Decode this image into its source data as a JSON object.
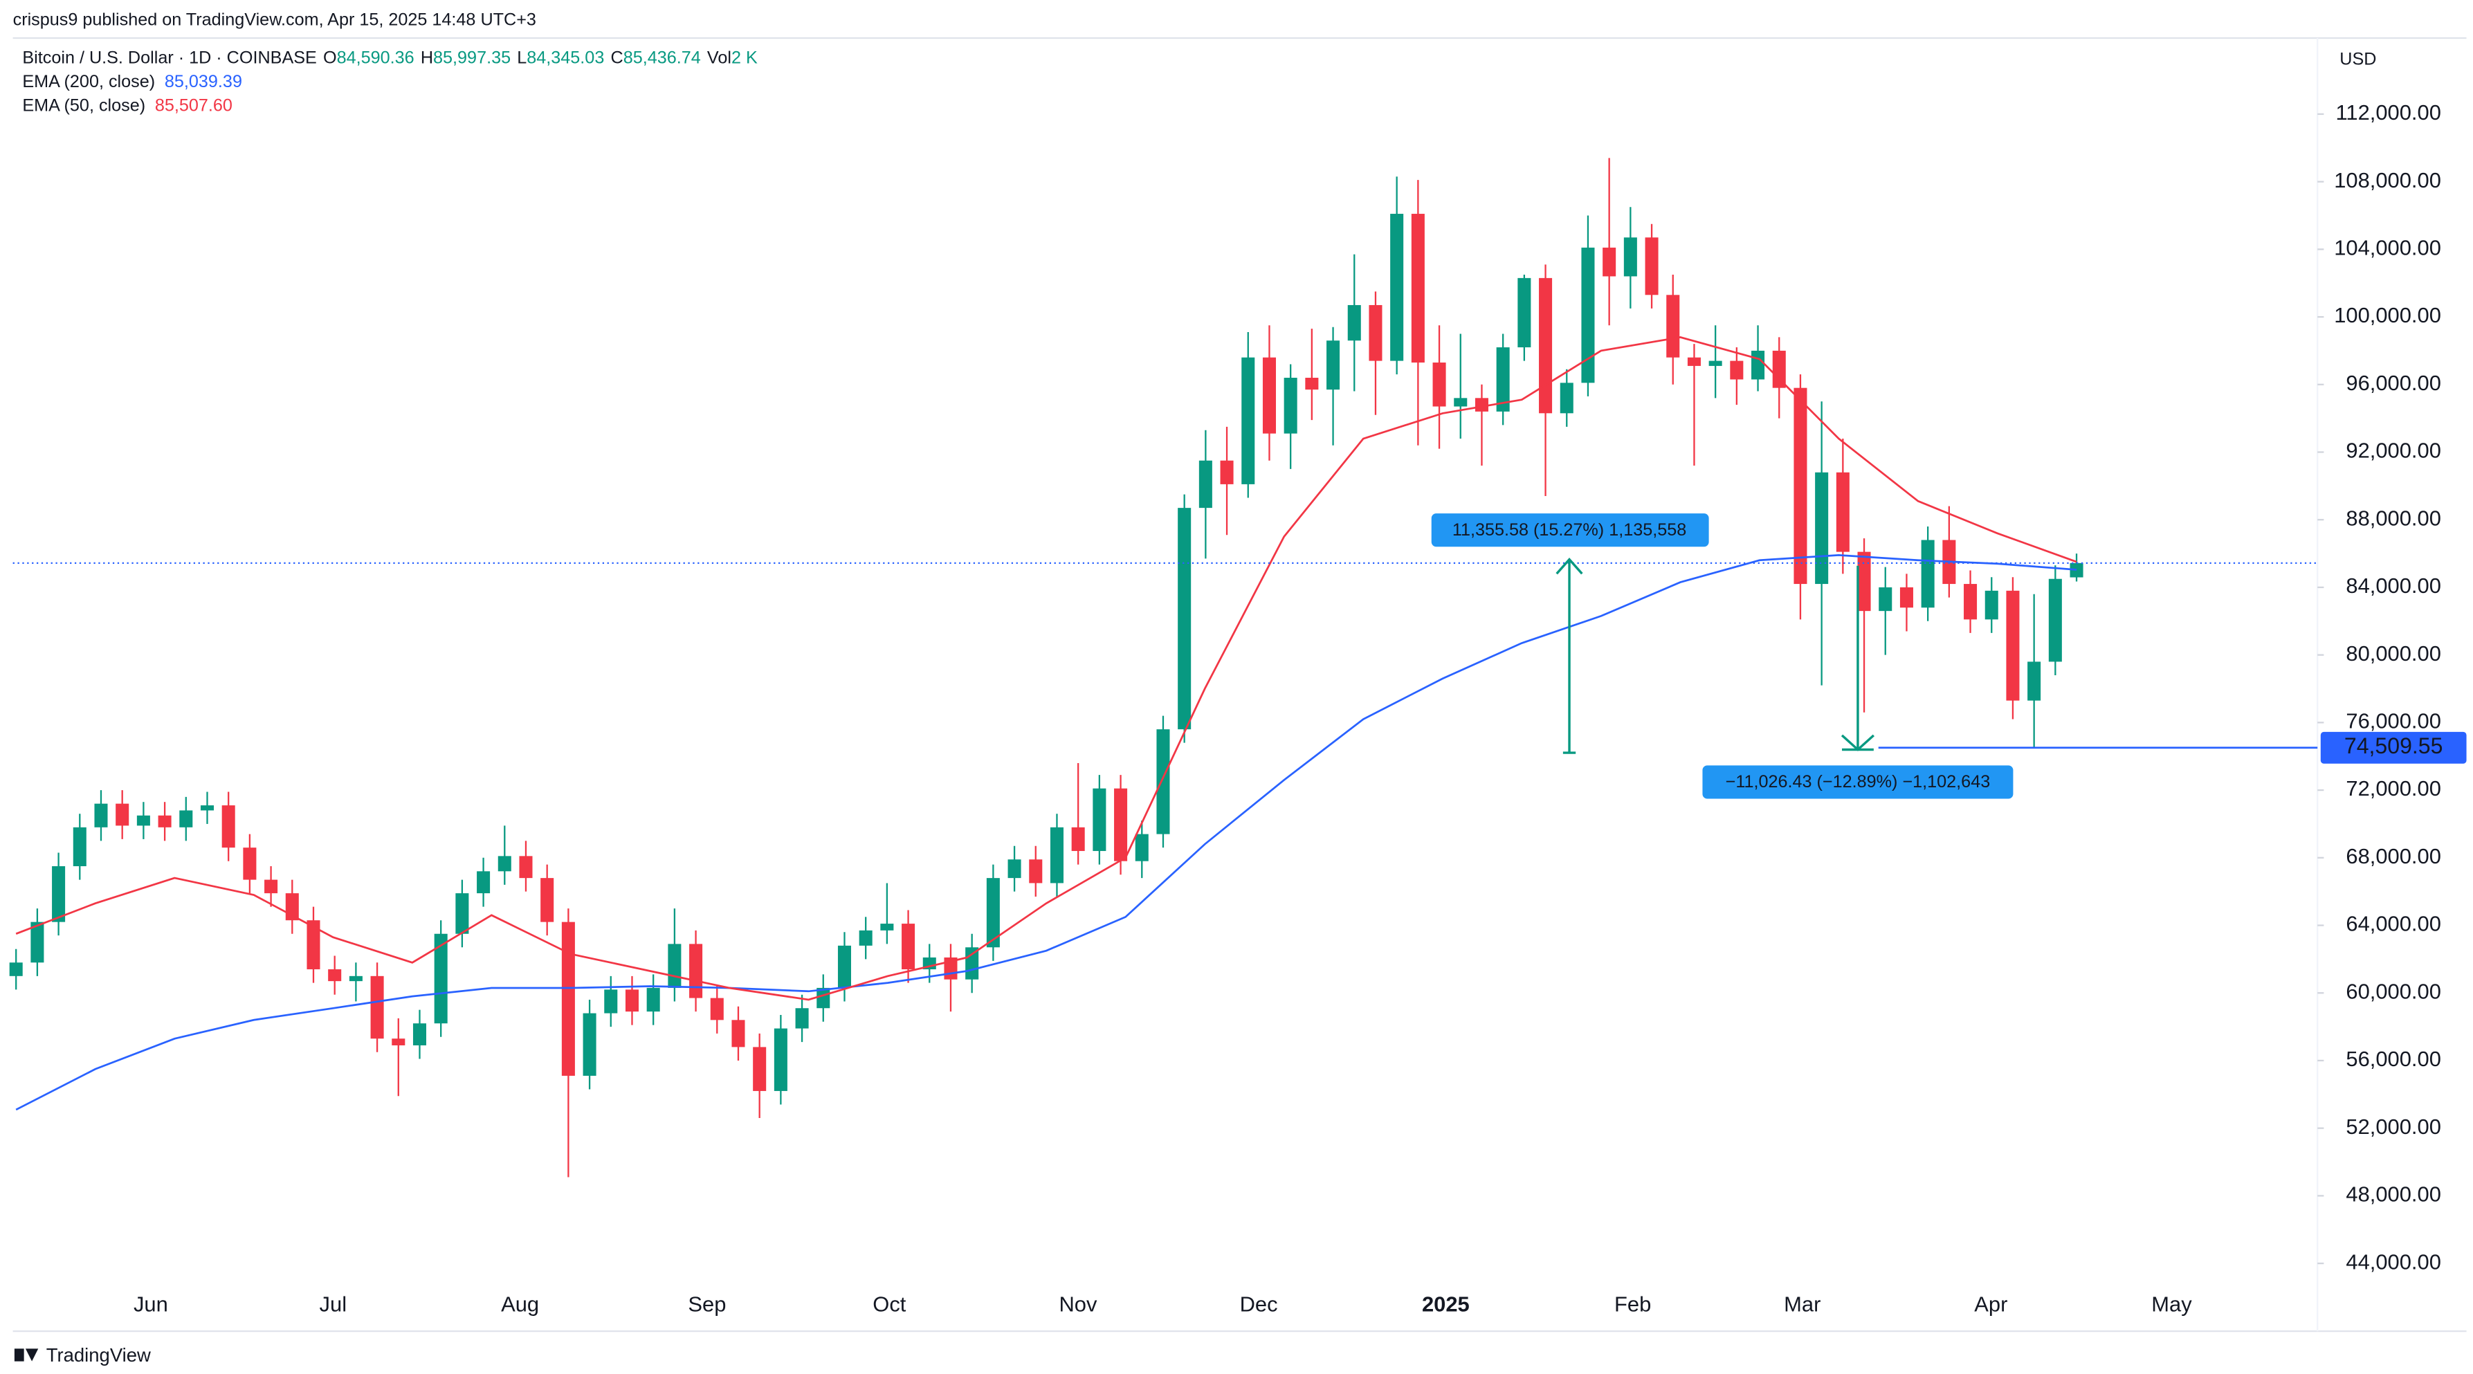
{
  "chart_data": {
    "type": "candlestick",
    "published": "crispus9 published on TradingView.com, Apr 15, 2025 14:48 UTC+3",
    "symbol": "Bitcoin / U.S. Dollar · 1D · COINBASE",
    "legend_values": {
      "o_label": "O",
      "o": "84,590.36",
      "h_label": "H",
      "h": "85,997.35",
      "l_label": "L",
      "l": "84,345.03",
      "c_label": "C",
      "c": "85,436.74",
      "vol_label": "Vol",
      "vol": "2 K"
    },
    "currency": "USD",
    "up_color": "#089981",
    "down_color": "#f23645",
    "ohlc": [
      [
        61000,
        62600,
        60200,
        61800
      ],
      [
        61800,
        65000,
        61000,
        64200
      ],
      [
        64200,
        68300,
        63400,
        67500
      ],
      [
        67500,
        70600,
        66700,
        69800
      ],
      [
        69800,
        72000,
        69000,
        71200
      ],
      [
        71200,
        72000,
        69100,
        69900
      ],
      [
        69900,
        71300,
        69100,
        70500
      ],
      [
        70500,
        71300,
        69000,
        69800
      ],
      [
        69800,
        71600,
        69000,
        70800
      ],
      [
        70800,
        71900,
        70000,
        71100
      ],
      [
        71100,
        71900,
        67800,
        68600
      ],
      [
        68600,
        69400,
        65900,
        66700
      ],
      [
        66700,
        67500,
        65100,
        65900
      ],
      [
        65900,
        66700,
        63500,
        64300
      ],
      [
        64300,
        65100,
        60600,
        61400
      ],
      [
        61400,
        62200,
        59900,
        60700
      ],
      [
        60700,
        61800,
        59500,
        61000
      ],
      [
        61000,
        61800,
        56500,
        57300
      ],
      [
        57300,
        58500,
        53900,
        56900
      ],
      [
        56900,
        59000,
        56100,
        58200
      ],
      [
        58200,
        64300,
        57400,
        63500
      ],
      [
        63500,
        66700,
        62700,
        65900
      ],
      [
        65900,
        68000,
        65100,
        67200
      ],
      [
        67200,
        69900,
        66400,
        68100
      ],
      [
        68100,
        69000,
        66000,
        66800
      ],
      [
        66800,
        67600,
        63400,
        64200
      ],
      [
        64200,
        65000,
        49100,
        55100
      ],
      [
        55100,
        59600,
        54300,
        58800
      ],
      [
        58800,
        61000,
        58000,
        60200
      ],
      [
        60200,
        61000,
        58100,
        58900
      ],
      [
        58900,
        61100,
        58100,
        60300
      ],
      [
        60300,
        65000,
        59500,
        62900
      ],
      [
        62900,
        63700,
        58900,
        59700
      ],
      [
        59700,
        60500,
        57600,
        58400
      ],
      [
        58400,
        59200,
        56000,
        56800
      ],
      [
        56800,
        57600,
        52600,
        54200
      ],
      [
        54200,
        58700,
        53400,
        57900
      ],
      [
        57900,
        59900,
        57100,
        59100
      ],
      [
        59100,
        61100,
        58300,
        60300
      ],
      [
        60300,
        63600,
        59500,
        62800
      ],
      [
        62800,
        64500,
        62000,
        63700
      ],
      [
        63700,
        66500,
        62900,
        64100
      ],
      [
        64100,
        64900,
        60600,
        61400
      ],
      [
        61400,
        62900,
        60600,
        62100
      ],
      [
        62100,
        62900,
        58900,
        60800
      ],
      [
        60800,
        63500,
        60000,
        62700
      ],
      [
        62700,
        67600,
        61900,
        66800
      ],
      [
        66800,
        68700,
        66000,
        67900
      ],
      [
        67900,
        68700,
        65700,
        66500
      ],
      [
        66500,
        70600,
        65700,
        69800
      ],
      [
        69800,
        73600,
        67600,
        68400
      ],
      [
        68400,
        72900,
        67600,
        72100
      ],
      [
        72100,
        72900,
        67000,
        67800
      ],
      [
        67800,
        70200,
        66800,
        69400
      ],
      [
        69400,
        76400,
        68600,
        75600
      ],
      [
        75600,
        89500,
        74800,
        88700
      ],
      [
        88700,
        93300,
        85700,
        91500
      ],
      [
        91500,
        93500,
        87100,
        90100
      ],
      [
        90100,
        99100,
        89300,
        97600
      ],
      [
        97600,
        99500,
        91500,
        93100
      ],
      [
        93100,
        97200,
        91000,
        96400
      ],
      [
        96400,
        99300,
        93900,
        95700
      ],
      [
        95700,
        99400,
        92400,
        98600
      ],
      [
        98600,
        103700,
        95600,
        100700
      ],
      [
        100700,
        101500,
        94200,
        97400
      ],
      [
        97400,
        108300,
        96600,
        106100
      ],
      [
        106100,
        108100,
        92400,
        97300
      ],
      [
        97300,
        99500,
        92200,
        94700
      ],
      [
        94700,
        99000,
        92800,
        95200
      ],
      [
        95200,
        96000,
        91200,
        94400
      ],
      [
        94400,
        99000,
        93600,
        98200
      ],
      [
        98200,
        102500,
        97400,
        102300
      ],
      [
        102300,
        103100,
        89400,
        94300
      ],
      [
        94300,
        96900,
        93500,
        96100
      ],
      [
        96100,
        106000,
        95300,
        104100
      ],
      [
        104100,
        109400,
        99500,
        102400
      ],
      [
        102400,
        106500,
        100500,
        104700
      ],
      [
        104700,
        105500,
        100500,
        101300
      ],
      [
        101300,
        102500,
        96000,
        97600
      ],
      [
        97600,
        98400,
        91200,
        97100
      ],
      [
        97100,
        99500,
        95200,
        97400
      ],
      [
        97400,
        98200,
        94800,
        96300
      ],
      [
        96300,
        99500,
        95600,
        98000
      ],
      [
        98000,
        98800,
        94000,
        95800
      ],
      [
        95800,
        96600,
        82100,
        84200
      ],
      [
        84200,
        95000,
        78200,
        90800
      ],
      [
        90800,
        92800,
        84800,
        86100
      ],
      [
        86100,
        86900,
        76600,
        82600
      ],
      [
        82600,
        85200,
        80000,
        84000
      ],
      [
        84000,
        84800,
        81400,
        82800
      ],
      [
        82800,
        87600,
        82000,
        86800
      ],
      [
        86800,
        88800,
        83400,
        84200
      ],
      [
        84200,
        85000,
        81300,
        82100
      ],
      [
        82100,
        84600,
        81300,
        83800
      ],
      [
        83800,
        84600,
        76200,
        77300
      ],
      [
        77300,
        83600,
        74500,
        79600
      ],
      [
        79600,
        85300,
        78800,
        84500
      ],
      [
        84590.36,
        85997.35,
        84345.03,
        85436.74
      ]
    ],
    "series": [
      {
        "name": "EMA (200, close)",
        "value_label": "85,039.39",
        "color": "#2962ff",
        "values": [
          53100,
          55500,
          57300,
          58400,
          59100,
          59800,
          60300,
          60300,
          60400,
          60300,
          60100,
          60600,
          61300,
          62500,
          64500,
          68800,
          72600,
          76200,
          78600,
          80700,
          82300,
          84300,
          85600,
          85900,
          85600,
          85400,
          85039.39
        ]
      },
      {
        "name": "EMA (50, close)",
        "value_label": "85,507.60",
        "color": "#f23645",
        "values": [
          63500,
          65300,
          66800,
          65800,
          63300,
          61800,
          64600,
          62300,
          61300,
          60300,
          59600,
          61000,
          62100,
          65300,
          68000,
          78000,
          87000,
          92800,
          94300,
          95100,
          98000,
          98800,
          97500,
          92800,
          89100,
          87200,
          85507.6
        ]
      }
    ],
    "xticks": [
      "Jun",
      "Jul",
      "Aug",
      "Sep",
      "Oct",
      "Nov",
      "Dec",
      "2025",
      "Feb",
      "Mar",
      "Apr",
      "May"
    ],
    "ylim": [
      42800,
      116500
    ],
    "yticks": [
      {
        "value": 44000,
        "label": "44,000.00"
      },
      {
        "value": 48000,
        "label": "48,000.00"
      },
      {
        "value": 52000,
        "label": "52,000.00"
      },
      {
        "value": 56000,
        "label": "56,000.00"
      },
      {
        "value": 60000,
        "label": "60,000.00"
      },
      {
        "value": 64000,
        "label": "64,000.00"
      },
      {
        "value": 68000,
        "label": "68,000.00"
      },
      {
        "value": 72000,
        "label": "72,000.00"
      },
      {
        "value": 76000,
        "label": "76,000.00"
      },
      {
        "value": 80000,
        "label": "80,000.00"
      },
      {
        "value": 84000,
        "label": "84,000.00"
      },
      {
        "value": 88000,
        "label": "88,000.00"
      },
      {
        "value": 92000,
        "label": "92,000.00"
      },
      {
        "value": 96000,
        "label": "96,000.00"
      },
      {
        "value": 100000,
        "label": "100,000.00"
      },
      {
        "value": 104000,
        "label": "104,000.00"
      },
      {
        "value": 108000,
        "label": "108,000.00"
      },
      {
        "value": 112000,
        "label": "112,000.00"
      }
    ],
    "price_line": {
      "value": 74509.55,
      "label": "74,509.55"
    },
    "annotations": [
      "11,355.58 (15.27%) 1,135,558",
      "−11,026.43 (−12.89%) −1,102,643"
    ],
    "brand": "TradingView"
  }
}
